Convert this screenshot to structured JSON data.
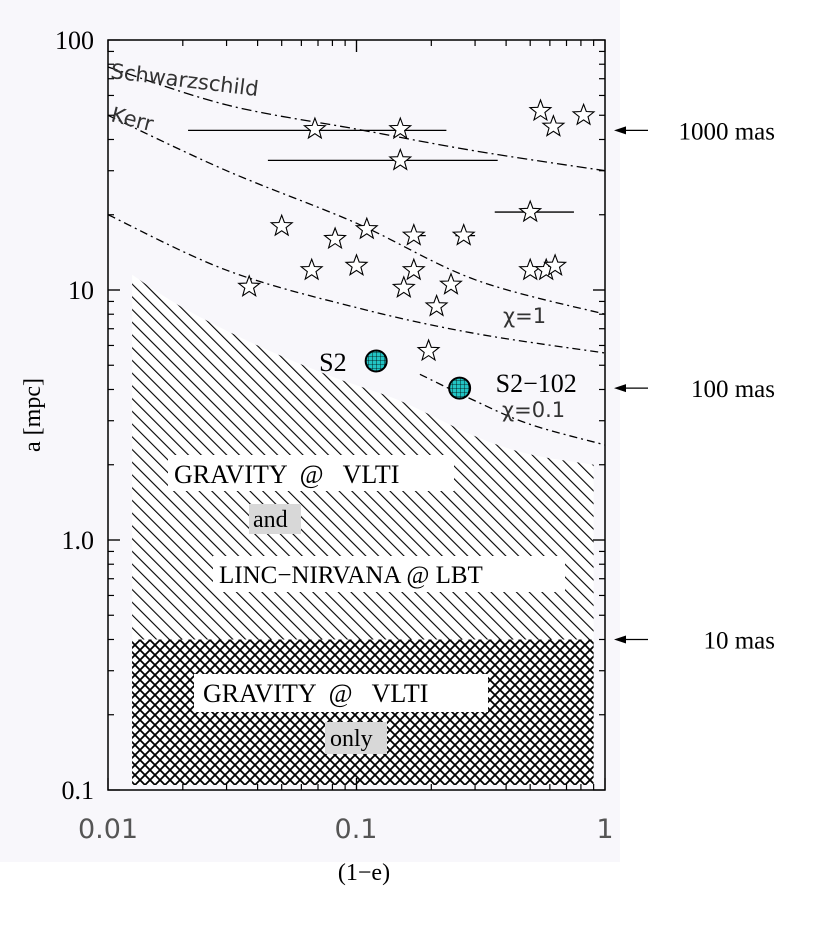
{
  "chart_data": {
    "type": "scatter",
    "xscale": "log",
    "yscale": "log",
    "xlim": [
      0.01,
      1
    ],
    "ylim": [
      0.1,
      100
    ],
    "xlabel": "(1−e)",
    "ylabel": "a [mpc]",
    "x_ticks": [
      "0.01",
      "0.1",
      "1"
    ],
    "y_ticks": [
      "0.1",
      "1.0",
      "10",
      "100"
    ],
    "right_markers": [
      {
        "label": "1000 mas",
        "a": 43.5
      },
      {
        "label": "100 mas",
        "a": 4.05
      },
      {
        "label": "10 mas",
        "a": 0.4
      }
    ],
    "curves": [
      {
        "label": "Schwarzschild",
        "points": [
          [
            0.01,
            78
          ],
          [
            0.03,
            55
          ],
          [
            0.1,
            44
          ],
          [
            0.3,
            36
          ],
          [
            1,
            30
          ]
        ]
      },
      {
        "label": "Kerr",
        "points": [
          [
            0.01,
            50
          ],
          [
            0.03,
            30
          ],
          [
            0.1,
            18.5
          ],
          [
            0.3,
            11
          ],
          [
            1,
            8
          ]
        ]
      },
      {
        "label": "χ=1",
        "points": [
          [
            0.01,
            20
          ],
          [
            0.03,
            12
          ],
          [
            0.1,
            8.5
          ],
          [
            0.3,
            6.7
          ],
          [
            1,
            5.6
          ]
        ]
      },
      {
        "label": "χ=0.1",
        "points": [
          [
            0.18,
            4.6
          ],
          [
            0.3,
            3.6
          ],
          [
            0.5,
            2.9
          ],
          [
            1,
            2.4
          ]
        ]
      }
    ],
    "stars": [
      [
        0.068,
        44
      ],
      [
        0.15,
        44
      ],
      [
        0.15,
        33
      ],
      [
        0.55,
        52
      ],
      [
        0.82,
        50
      ],
      [
        0.62,
        45
      ],
      [
        0.05,
        18
      ],
      [
        0.082,
        16
      ],
      [
        0.11,
        17.5
      ],
      [
        0.17,
        16.5
      ],
      [
        0.27,
        16.5
      ],
      [
        0.5,
        20.5
      ],
      [
        0.066,
        12
      ],
      [
        0.1,
        12.5
      ],
      [
        0.17,
        12
      ],
      [
        0.155,
        10.2
      ],
      [
        0.24,
        10.5
      ],
      [
        0.21,
        8.6
      ],
      [
        0.5,
        12
      ],
      [
        0.58,
        12
      ],
      [
        0.63,
        12.5
      ],
      [
        0.037,
        10.3
      ],
      [
        0.195,
        5.7
      ]
    ],
    "error_bars": [
      {
        "y": 43.5,
        "x0": 0.021,
        "x1": 0.23
      },
      {
        "y": 33,
        "x0": 0.044,
        "x1": 0.37
      },
      {
        "y": 20.5,
        "x0": 0.36,
        "x1": 0.75
      },
      {
        "y": 16.5,
        "x0": 0.16,
        "x1": 0.19
      },
      {
        "y": 16.5,
        "x0": 0.25,
        "x1": 0.3
      }
    ],
    "named_points": [
      {
        "label": "S2",
        "x": 0.12,
        "y": 5.2
      },
      {
        "label": "S2−102",
        "x": 0.26,
        "y": 4.05
      }
    ],
    "region_boundary": [
      [
        0.0125,
        11.5
      ],
      [
        0.02,
        8.5
      ],
      [
        0.04,
        6
      ],
      [
        0.08,
        4.5
      ],
      [
        0.15,
        3.6
      ],
      [
        0.3,
        2.6
      ],
      [
        0.5,
        2.2
      ],
      [
        0.9,
        2.0
      ]
    ],
    "region_x_range": [
      0.0125,
      0.9
    ],
    "region_split_a": 0.4,
    "region_labels": {
      "upper_line1": "GRAVITY  @   VLTI",
      "upper_and": "and",
      "upper_line2": "LINC−NIRVANA @ LBT",
      "lower_line1": "GRAVITY  @   VLTI",
      "lower_only": "only"
    }
  }
}
